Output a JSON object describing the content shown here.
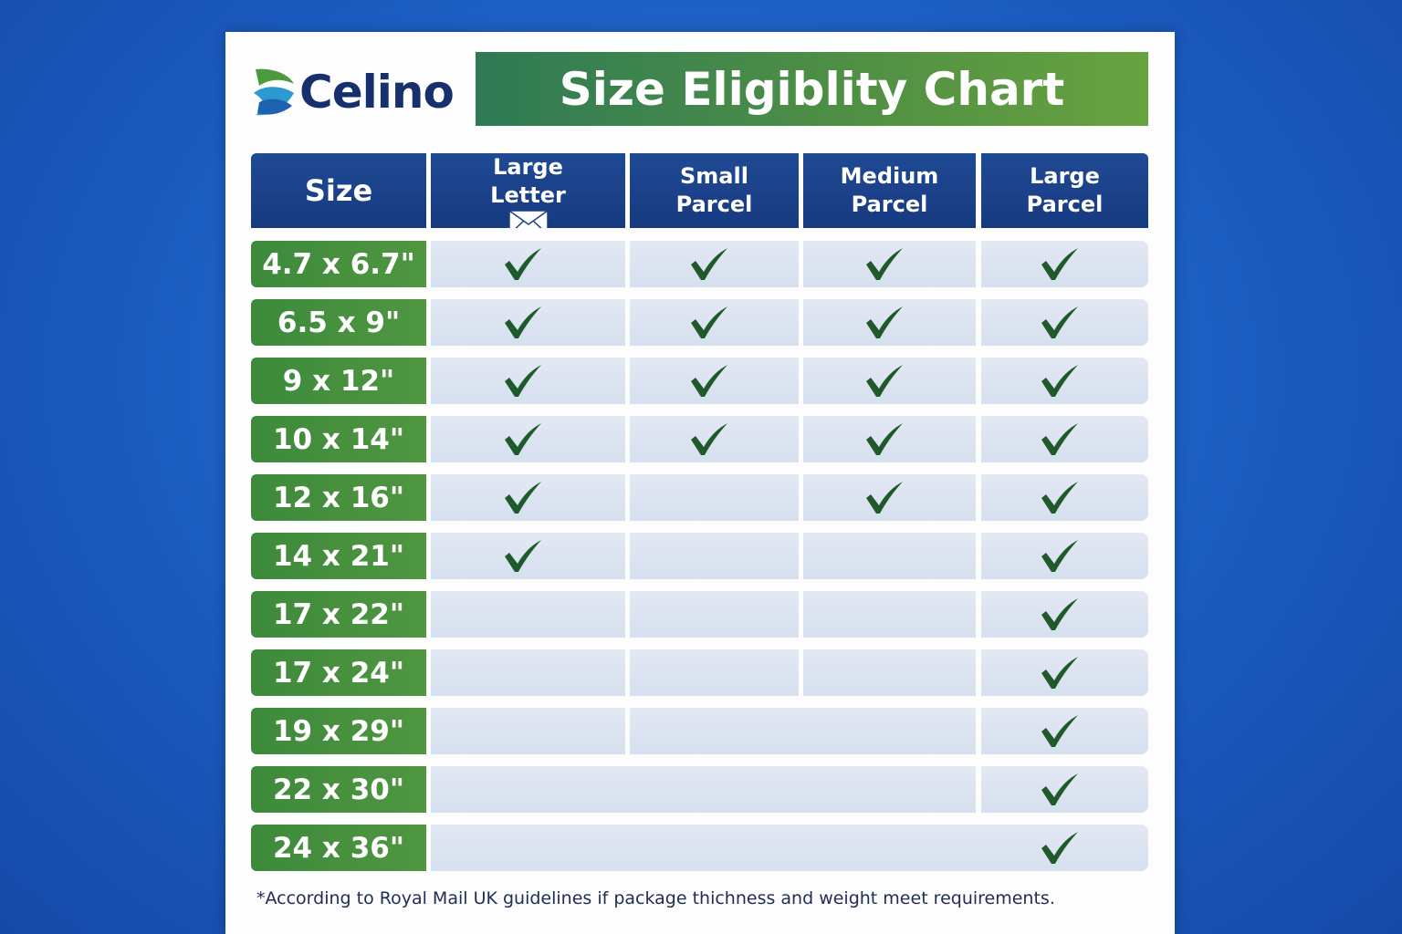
{
  "logo": "Celino",
  "title": "Size Eligiblity Chart",
  "table": {
    "columns": [
      "Size",
      "Large Letter",
      "Small Parcel",
      "Medium Parcel",
      "Large Parcel"
    ],
    "rows": [
      {
        "size": "4.7 x 6.7\"",
        "checks": [
          true,
          true,
          true,
          true
        ]
      },
      {
        "size": "6.5 x 9\"",
        "checks": [
          true,
          true,
          true,
          true
        ]
      },
      {
        "size": "9 x 12\"",
        "checks": [
          true,
          true,
          true,
          true
        ]
      },
      {
        "size": "10 x 14\"",
        "checks": [
          true,
          true,
          true,
          true
        ]
      },
      {
        "size": "12 x 16\"",
        "checks": [
          true,
          false,
          true,
          true
        ]
      },
      {
        "size": "14 x 21\"",
        "checks": [
          true,
          false,
          false,
          true
        ]
      },
      {
        "size": "17 x 22\"",
        "checks": [
          false,
          false,
          false,
          true
        ]
      },
      {
        "size": "17 x 24\"",
        "checks": [
          false,
          false,
          false,
          true
        ]
      },
      {
        "size": "19 x 29\"",
        "checks": [
          false,
          false,
          false,
          true
        ]
      },
      {
        "size": "22 x 30\"",
        "checks": [
          false,
          false,
          false,
          true
        ]
      },
      {
        "size": "24 x 36\"",
        "checks": [
          false,
          false,
          false,
          true
        ]
      }
    ]
  },
  "footnote": "*According to Royal Mail UK guidelines if package thichness and weight meet requirements."
}
